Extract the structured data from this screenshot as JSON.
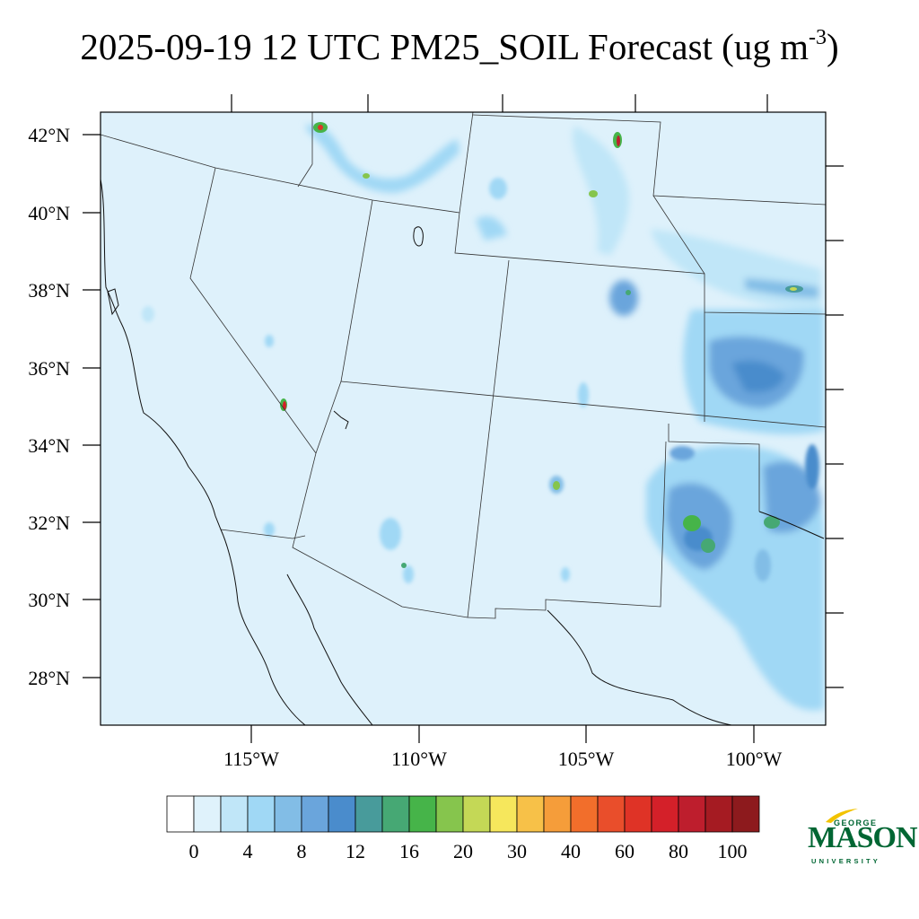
{
  "title": {
    "text": "2025-09-19 12 UTC PM25_SOIL Forecast (ug m",
    "superscript": "-3",
    "closing": ")"
  },
  "map": {
    "lat_range": [
      26.8,
      42.6
    ],
    "lon_range": [
      -119.5,
      -98.0
    ],
    "lat_labels": [
      "42°N",
      "40°N",
      "38°N",
      "36°N",
      "34°N",
      "32°N",
      "30°N",
      "28°N"
    ],
    "lon_labels": [
      "115°W",
      "110°W",
      "105°W",
      "100°W"
    ],
    "background_color": "#def1fb",
    "hotspots": [
      {
        "name": "nw-utah-plume",
        "lon": -112.5,
        "lat": 42.1,
        "level": "high"
      },
      {
        "name": "wyoming-hotspot",
        "lon": -104.1,
        "lat": 41.9,
        "level": "max"
      },
      {
        "name": "mojave-hotspot",
        "lon": -114.6,
        "lat": 35.0,
        "level": "max"
      },
      {
        "name": "west-texas-region",
        "lon": -101.8,
        "lat": 31.7,
        "level": "moderate"
      },
      {
        "name": "kansas-band",
        "lon": -99.0,
        "lat": 38.0,
        "level": "moderate"
      },
      {
        "name": "oklahoma-region",
        "lon": -100.3,
        "lat": 35.9,
        "level": "elevated"
      }
    ]
  },
  "colorbar": {
    "colors": [
      "#ffffff",
      "#dff2fb",
      "#c0e6f8",
      "#a0d8f5",
      "#82bde6",
      "#6aa5dc",
      "#4a8ccc",
      "#489b9b",
      "#46a874",
      "#46b449",
      "#86c54d",
      "#c4d856",
      "#f6e75c",
      "#f7c148",
      "#f59d3a",
      "#f26e2b",
      "#e94e2b",
      "#df3326",
      "#d42029",
      "#be1e2d",
      "#a51b22",
      "#8d1a1d"
    ],
    "labels": [
      "0",
      "4",
      "8",
      "12",
      "16",
      "20",
      "30",
      "40",
      "60",
      "80",
      "100"
    ]
  },
  "logo": {
    "top_word": "GEORGE",
    "main_word": "MASON",
    "bottom_word": "UNIVERSITY",
    "color": "#006633",
    "accent_color": "#f2c300"
  }
}
